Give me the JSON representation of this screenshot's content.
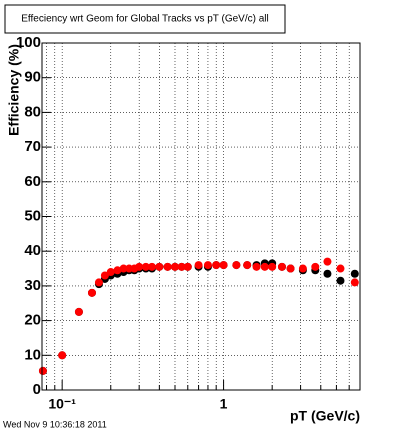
{
  "chart_data": {
    "type": "scatter",
    "title": "Effeciency wrt Geom for Global Tracks vs pT (GeV/c) all",
    "x_label": "pT (GeV/c)",
    "y_label": "Efficiency (%)",
    "timestamp": "Wed Nov  9 10:36:18 2011",
    "x_log": true,
    "grid": true,
    "xlim": [
      0.075,
      7
    ],
    "ylim": [
      0,
      100
    ],
    "xticks": [
      {
        "value": 0.1,
        "label": "10⁻¹"
      },
      1
    ],
    "xminor_ticks": [
      0.08,
      0.09,
      0.2,
      0.3,
      0.4,
      0.5,
      0.6,
      0.7,
      0.8,
      0.9,
      2,
      3,
      4,
      5,
      6,
      7
    ],
    "yticks": [
      0,
      10,
      20,
      30,
      40,
      50,
      60,
      70,
      80,
      90,
      100
    ],
    "x": [
      0.076,
      0.1,
      0.127,
      0.153,
      0.169,
      0.184,
      0.2,
      0.22,
      0.24,
      0.26,
      0.28,
      0.3,
      0.33,
      0.36,
      0.4,
      0.45,
      0.5,
      0.55,
      0.6,
      0.7,
      0.8,
      0.9,
      1.0,
      1.2,
      1.4,
      1.6,
      1.8,
      2.0,
      2.3,
      2.6,
      3.1,
      3.7,
      4.4,
      5.3,
      6.5
    ],
    "series": [
      {
        "color": "#000000",
        "values": [
          5.5,
          10,
          22.5,
          28,
          30.5,
          32,
          33,
          33.5,
          34,
          34.5,
          34.5,
          35,
          35,
          35,
          35.5,
          35.5,
          35.5,
          35.5,
          35.5,
          35.5,
          35.5,
          36,
          36,
          36,
          36,
          36,
          36.5,
          36.5,
          35.5,
          35,
          34.5,
          34.5,
          33.5,
          31.5,
          33.5
        ]
      },
      {
        "color": "#ff0000",
        "values": [
          5.5,
          10,
          22.5,
          28,
          31,
          33,
          34,
          34.5,
          35,
          35,
          35,
          35.5,
          35.5,
          35.5,
          35.5,
          35.5,
          35.5,
          35.5,
          35.5,
          36,
          36,
          36,
          36,
          36,
          36,
          35.5,
          35.5,
          35.5,
          35.5,
          35,
          35,
          35.5,
          37,
          35,
          31
        ]
      }
    ]
  }
}
